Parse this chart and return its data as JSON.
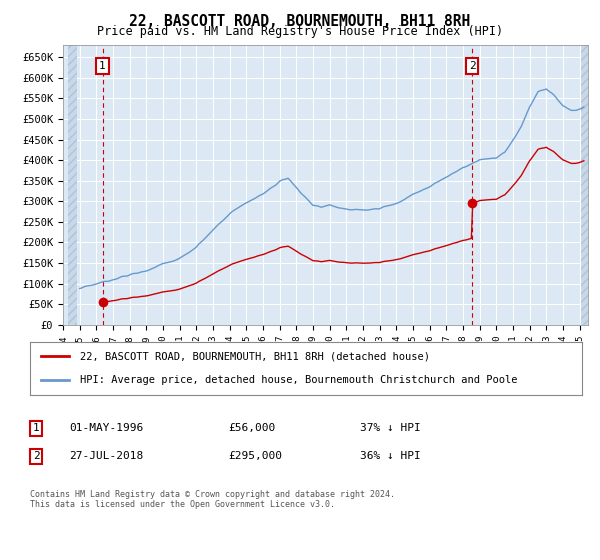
{
  "title": "22, BASCOTT ROAD, BOURNEMOUTH, BH11 8RH",
  "subtitle": "Price paid vs. HM Land Registry's House Price Index (HPI)",
  "ylim_max": 680000,
  "yticks": [
    0,
    50000,
    100000,
    150000,
    200000,
    250000,
    300000,
    350000,
    400000,
    450000,
    500000,
    550000,
    600000,
    650000
  ],
  "ytick_labels": [
    "£0",
    "£50K",
    "£100K",
    "£150K",
    "£200K",
    "£250K",
    "£300K",
    "£350K",
    "£400K",
    "£450K",
    "£500K",
    "£550K",
    "£600K",
    "£650K"
  ],
  "bg_color": "#dce9f5",
  "grid_color": "#ffffff",
  "hatch_bg": "#c8d8e8",
  "sale1_date": 1996.37,
  "sale1_price": 56000,
  "sale2_date": 2018.56,
  "sale2_price": 295000,
  "red_color": "#cc0000",
  "blue_color": "#6699cc",
  "box_color": "#cc0000",
  "xmin": 1994.3,
  "xmax": 2025.5,
  "legend_label1": "22, BASCOTT ROAD, BOURNEMOUTH, BH11 8RH (detached house)",
  "legend_label2": "HPI: Average price, detached house, Bournemouth Christchurch and Poole",
  "note1_date": "01-MAY-1996",
  "note1_price": "£56,000",
  "note1_hpi": "37% ↓ HPI",
  "note2_date": "27-JUL-2018",
  "note2_price": "£295,000",
  "note2_hpi": "36% ↓ HPI",
  "footer": "Contains HM Land Registry data © Crown copyright and database right 2024.\nThis data is licensed under the Open Government Licence v3.0."
}
